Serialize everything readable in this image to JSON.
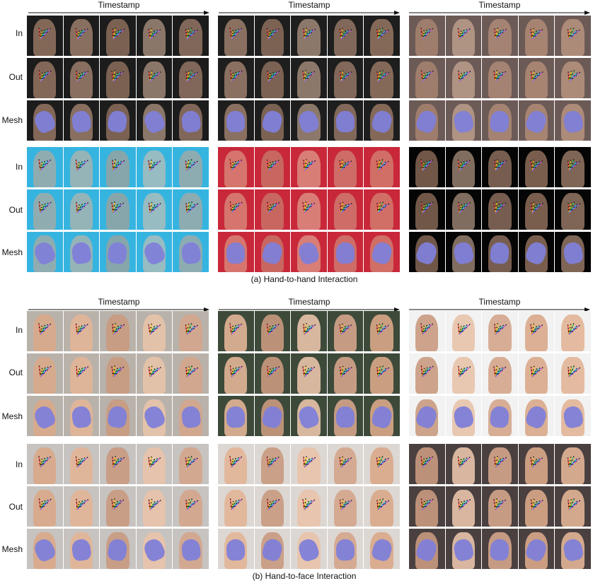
{
  "timestamp_label": "Timestamp",
  "row_labels": [
    "In",
    "Out",
    "Mesh"
  ],
  "captions": {
    "a": "(a) Hand-to-hand Interaction",
    "b": "(b) Hand-to-face Interaction"
  },
  "colors": {
    "mesh": "#7f7fd8",
    "keypoints": [
      "#ff3b30",
      "#ffcc00",
      "#34c759",
      "#00c7ff",
      "#af52de"
    ],
    "panel_backgrounds": {
      "a1_top": "#1c1c1c",
      "a2_top": "#1e1e1e",
      "a3_top": "#6c5a56",
      "a1_bottom": "#36b4e0",
      "a2_bottom": "#c8283a",
      "a3_bottom": "#050505",
      "b1_top": "#b9b2ab",
      "b2_top": "#3d4a3a",
      "b3_top": "#f2f2f2",
      "b1_bottom": "#c6c3c0",
      "b2_bottom": "#dcd7d2",
      "b3_bottom": "#4a4040"
    }
  }
}
